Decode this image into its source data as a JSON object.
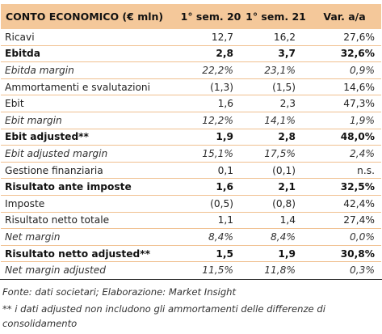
{
  "table": {
    "headers": [
      "CONTO ECONOMICO (€ mln)",
      "1° sem. 20",
      "1° sem. 21",
      "Var. a/a"
    ],
    "rows": [
      {
        "label": "Ricavi",
        "v1": "12,7",
        "v2": "16,2",
        "v3": "27,6%",
        "style": "normal"
      },
      {
        "label": "Ebitda",
        "v1": "2,8",
        "v2": "3,7",
        "v3": "32,6%",
        "style": "bold"
      },
      {
        "label": "Ebitda margin",
        "v1": "22,2%",
        "v2": "23,1%",
        "v3": "0,9%",
        "style": "italic"
      },
      {
        "label": "Ammortamenti e svalutazioni",
        "v1": "(1,3)",
        "v2": "(1,5)",
        "v3": "14,6%",
        "style": "normal"
      },
      {
        "label": "Ebit",
        "v1": "1,6",
        "v2": "2,3",
        "v3": "47,3%",
        "style": "normal"
      },
      {
        "label": "Ebit margin",
        "v1": "12,2%",
        "v2": "14,1%",
        "v3": "1,9%",
        "style": "italic"
      },
      {
        "label": "Ebit adjusted**",
        "v1": "1,9",
        "v2": "2,8",
        "v3": "48,0%",
        "style": "bold"
      },
      {
        "label": "Ebit adjusted margin",
        "v1": "15,1%",
        "v2": "17,5%",
        "v3": "2,4%",
        "style": "italic"
      },
      {
        "label": "Gestione finanziaria",
        "v1": "0,1",
        "v2": "(0,1)",
        "v3": "n.s.",
        "style": "normal"
      },
      {
        "label": "Risultato ante imposte",
        "v1": "1,6",
        "v2": "2,1",
        "v3": "32,5%",
        "style": "bold"
      },
      {
        "label": "Imposte",
        "v1": "(0,5)",
        "v2": "(0,8)",
        "v3": "42,4%",
        "style": "normal"
      },
      {
        "label": "Risultato netto totale",
        "v1": "1,1",
        "v2": "1,4",
        "v3": "27,4%",
        "style": "normal"
      },
      {
        "label": "Net margin",
        "v1": "8,4%",
        "v2": "8,4%",
        "v3": "0,0%",
        "style": "italic"
      },
      {
        "label": "Risultato netto adjusted**",
        "v1": "1,5",
        "v2": "1,9",
        "v3": "30,8%",
        "style": "bold"
      },
      {
        "label": "Net margin adjusted",
        "v1": "11,5%",
        "v2": "11,8%",
        "v3": "0,3%",
        "style": "italic"
      }
    ]
  },
  "source": "Fonte: dati societari; Elaborazione: Market Insight",
  "footnote": "** i dati adjusted non includono gli ammortamenti delle differenze di consolidamento",
  "colors": {
    "header_bg": "#f4c89a",
    "row_divider": "#f0c090"
  }
}
